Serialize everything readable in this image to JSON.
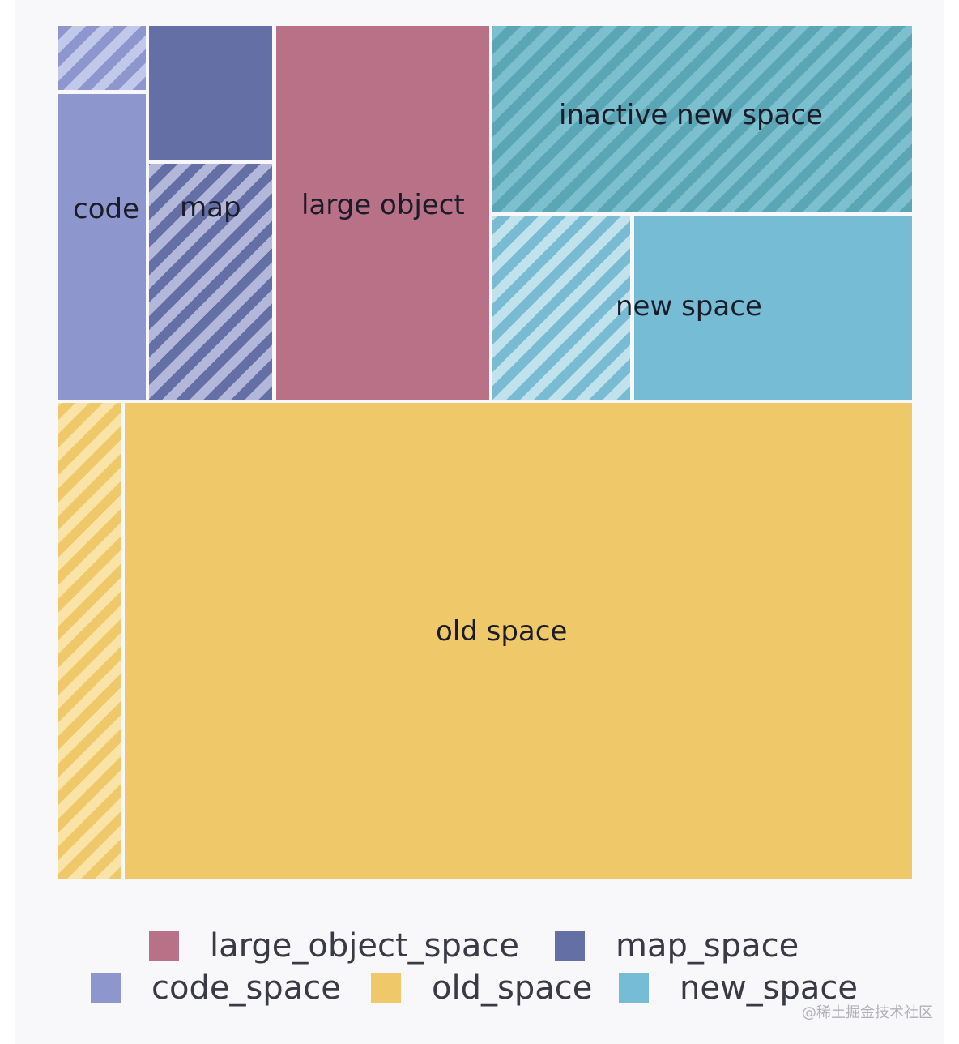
{
  "blocks": {
    "code": "code",
    "map": "map",
    "large_object": "large object",
    "inactive_new_space": "inactive new space",
    "new_space": "new space",
    "old_space": "old space"
  },
  "legend": [
    {
      "label": "large_object_space",
      "color": "#b87187"
    },
    {
      "label": "map_space",
      "color": "#646fa6"
    },
    {
      "label": "code_space",
      "color": "#8d97cd"
    },
    {
      "label": "old_space",
      "color": "#efc86a"
    },
    {
      "label": "new_space",
      "color": "#76bcd4"
    }
  ],
  "watermark": "@稀土掘金技术社区"
}
